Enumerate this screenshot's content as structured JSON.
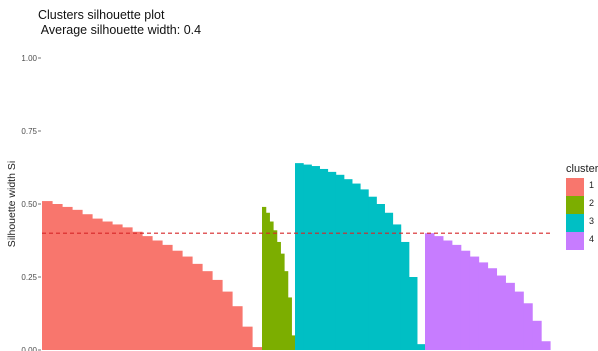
{
  "chart_data": {
    "type": "bar",
    "title": "Clusters silhouette plot",
    "subtitle": " Average silhouette width: 0.4",
    "xlabel": "",
    "ylabel": "Silhouette width Si",
    "ylim": [
      0,
      1
    ],
    "yticks": [
      "0.00",
      "0.25",
      "0.50",
      "0.75",
      "1.00"
    ],
    "reference_line": {
      "y": 0.4,
      "style": "dashed",
      "color": "#d62728"
    },
    "grid": false,
    "legend": {
      "title": "cluster",
      "position": "right"
    },
    "series": [
      {
        "name": "1",
        "color": "#f8766d",
        "values": [
          0.51,
          0.5,
          0.49,
          0.48,
          0.465,
          0.45,
          0.44,
          0.43,
          0.42,
          0.405,
          0.39,
          0.375,
          0.36,
          0.34,
          0.32,
          0.295,
          0.27,
          0.24,
          0.2,
          0.15,
          0.08,
          0.01
        ]
      },
      {
        "name": "2",
        "color": "#7cae00",
        "values": [
          0.49,
          0.47,
          0.44,
          0.41,
          0.37,
          0.33,
          0.27,
          0.18,
          0.05
        ]
      },
      {
        "name": "3",
        "color": "#00bfc4",
        "values": [
          0.64,
          0.635,
          0.63,
          0.62,
          0.61,
          0.6,
          0.585,
          0.57,
          0.55,
          0.525,
          0.5,
          0.47,
          0.43,
          0.37,
          0.25,
          0.02
        ]
      },
      {
        "name": "4",
        "color": "#c77cff",
        "values": [
          0.4,
          0.39,
          0.375,
          0.36,
          0.34,
          0.32,
          0.3,
          0.28,
          0.255,
          0.23,
          0.2,
          0.16,
          0.1,
          0.03
        ]
      }
    ]
  }
}
